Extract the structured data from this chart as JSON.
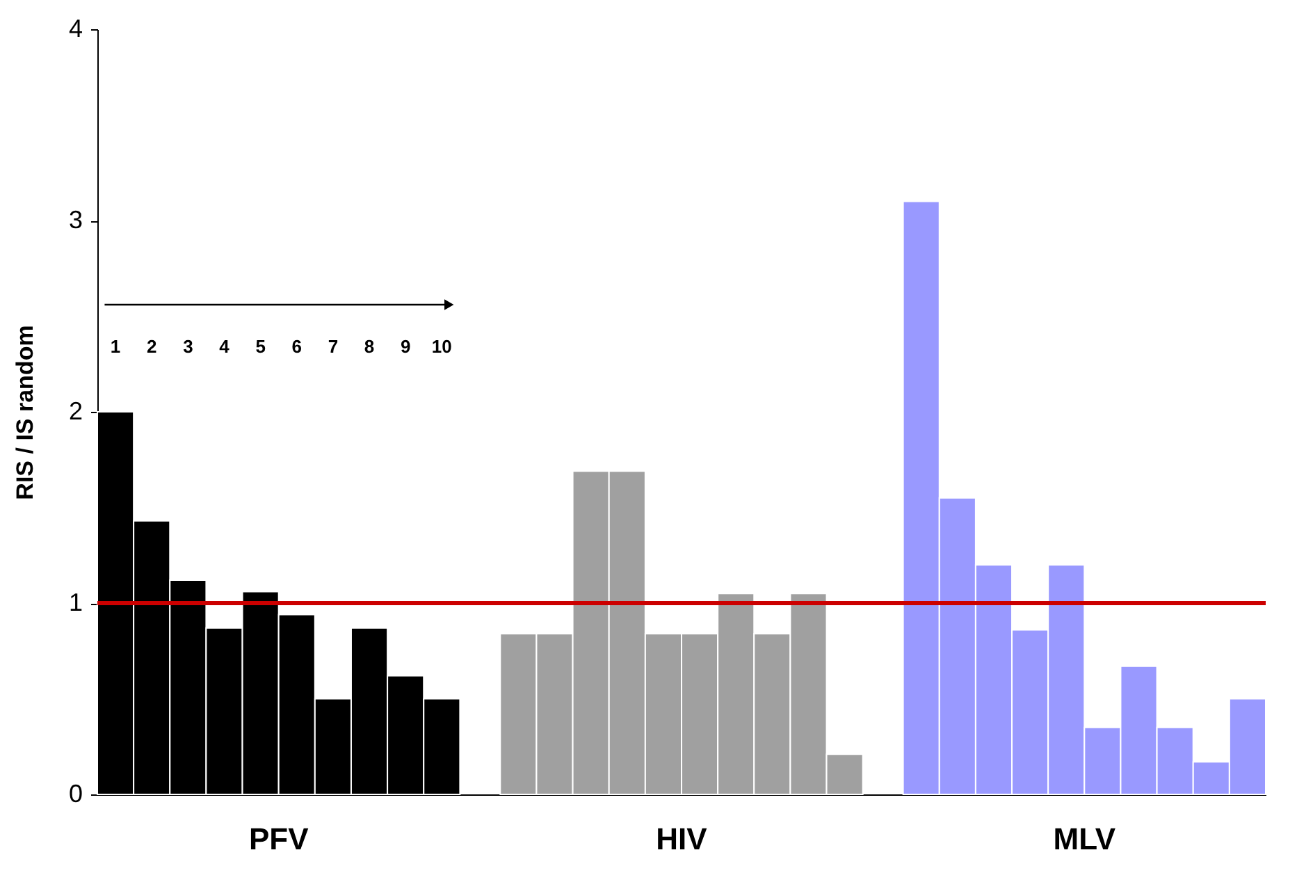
{
  "chart_data": {
    "type": "bar",
    "ylabel": "RIS / IS random",
    "categories": [
      "PFV",
      "HIV",
      "MLV"
    ],
    "series": [
      {
        "colors": [
          "#000000",
          "#a0a0a0",
          "#9999ff"
        ],
        "values": [
          2.0,
          0.84,
          3.1
        ]
      },
      {
        "colors": [
          "#000000",
          "#a0a0a0",
          "#9999ff"
        ],
        "values": [
          1.43,
          0.84,
          1.55
        ]
      },
      {
        "colors": [
          "#000000",
          "#a0a0a0",
          "#9999ff"
        ],
        "values": [
          1.12,
          1.69,
          1.2
        ]
      },
      {
        "colors": [
          "#000000",
          "#a0a0a0",
          "#9999ff"
        ],
        "values": [
          0.87,
          1.69,
          0.86
        ]
      },
      {
        "colors": [
          "#000000",
          "#a0a0a0",
          "#9999ff"
        ],
        "values": [
          1.06,
          0.84,
          1.2
        ]
      },
      {
        "colors": [
          "#000000",
          "#a0a0a0",
          "#9999ff"
        ],
        "values": [
          0.94,
          0.84,
          0.35
        ]
      },
      {
        "colors": [
          "#000000",
          "#a0a0a0",
          "#9999ff"
        ],
        "values": [
          0.5,
          1.05,
          0.67
        ]
      },
      {
        "colors": [
          "#000000",
          "#a0a0a0",
          "#9999ff"
        ],
        "values": [
          0.87,
          0.84,
          0.35
        ]
      },
      {
        "colors": [
          "#000000",
          "#a0a0a0",
          "#9999ff"
        ],
        "values": [
          0.62,
          1.05,
          0.17
        ]
      },
      {
        "colors": [
          "#000000",
          "#a0a0a0",
          "#9999ff"
        ],
        "values": [
          0.5,
          0.21,
          0.5
        ]
      }
    ],
    "ylim": [
      0,
      4
    ],
    "yticks": [
      0,
      1,
      2,
      3,
      4
    ],
    "ref_lines": [
      {
        "axis": "y",
        "value": 1,
        "color": "#cc0000"
      }
    ],
    "annotations": [
      "1",
      "2",
      "3",
      "4",
      "5",
      "6",
      "7",
      "8",
      "9",
      "10"
    ],
    "grid": false
  }
}
